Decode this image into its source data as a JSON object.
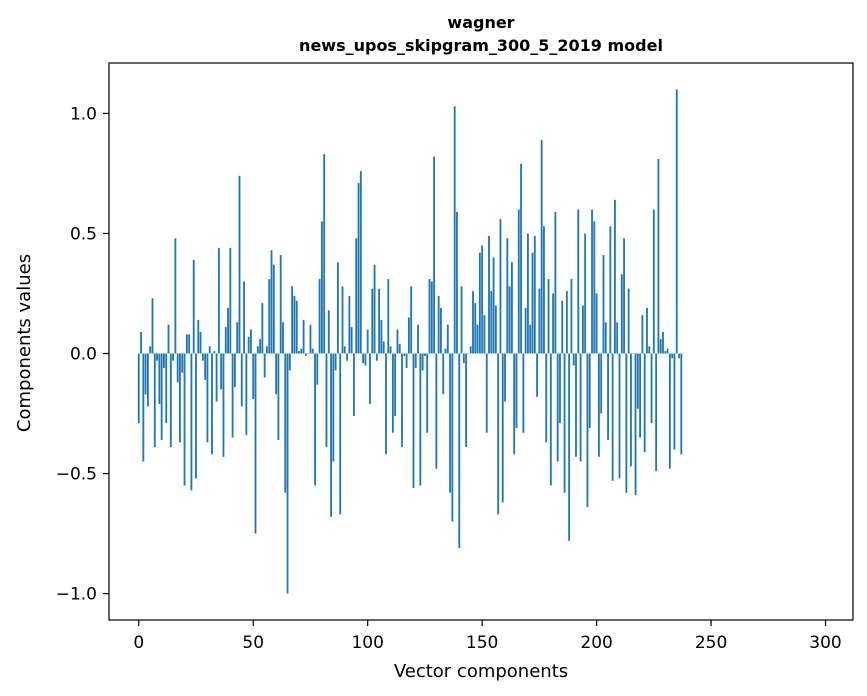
{
  "chart_data": {
    "type": "bar",
    "title": "wagner",
    "subtitle": "news_upos_skipgram_300_5_2019 model",
    "xlabel": "Vector components",
    "ylabel": "Components values",
    "xlim": [
      -13,
      312
    ],
    "ylim": [
      -1.11,
      1.21
    ],
    "xticks": [
      0,
      50,
      100,
      150,
      200,
      250,
      300
    ],
    "xtick_labels": [
      "0",
      "50",
      "100",
      "150",
      "200",
      "250",
      "300"
    ],
    "yticks": [
      -1.0,
      -0.5,
      0.0,
      0.5,
      1.0
    ],
    "ytick_labels": [
      "−1.0",
      "−0.5",
      "0.0",
      "0.5",
      "1.0"
    ],
    "grid": false,
    "bar_color": "#1f77b4",
    "values": [
      -0.29,
      0.09,
      -0.45,
      -0.17,
      -0.22,
      0.03,
      0.23,
      -0.39,
      -0.03,
      -0.21,
      -0.36,
      -0.06,
      -0.29,
      0.12,
      -0.39,
      -0.03,
      0.48,
      -0.12,
      -0.37,
      -0.08,
      -0.55,
      0.08,
      0.08,
      -0.57,
      0.39,
      -0.52,
      0.14,
      0.09,
      -0.03,
      -0.11,
      -0.37,
      0.03,
      -0.42,
      0.01,
      -0.2,
      0.44,
      -0.15,
      -0.43,
      0.11,
      0.19,
      0.44,
      -0.35,
      -0.14,
      0.13,
      0.74,
      -0.22,
      0.3,
      -0.34,
      0.07,
      0.1,
      -0.19,
      -0.75,
      0.03,
      0.06,
      0.21,
      -0.1,
      0.03,
      0.31,
      0.43,
      0.37,
      -0.17,
      -0.36,
      0.41,
      0.13,
      -0.58,
      -1.0,
      -0.07,
      0.28,
      0.24,
      0.22,
      0.01,
      0.02,
      0.14,
      -0.01,
      0.0,
      0.12,
      0.02,
      -0.55,
      -0.13,
      0.31,
      0.55,
      0.83,
      -0.39,
      0.18,
      -0.68,
      -0.45,
      -0.07,
      0.38,
      -0.67,
      0.28,
      0.03,
      -0.03,
      0.24,
      0.11,
      -0.26,
      0.48,
      0.71,
      0.76,
      -0.04,
      -0.05,
      0.1,
      -0.21,
      0.27,
      0.37,
      -0.03,
      0.27,
      0.14,
      0.05,
      -0.42,
      0.31,
      0.03,
      -0.33,
      -0.26,
      0.1,
      0.04,
      -0.39,
      -0.01,
      -0.06,
      0.15,
      0.28,
      -0.56,
      -0.06,
      0.12,
      -0.55,
      -0.07,
      -0.01,
      -0.33,
      0.31,
      0.3,
      0.82,
      -0.48,
      0.24,
      0.19,
      -0.17,
      0.02,
      0.12,
      -0.58,
      -0.7,
      1.03,
      0.59,
      -0.81,
      0.28,
      -0.04,
      -0.39,
      0.0,
      0.03,
      0.26,
      0.21,
      0.12,
      0.42,
      0.45,
      0.16,
      -0.33,
      0.49,
      0.26,
      0.4,
      0.2,
      -0.67,
      0.56,
      -0.62,
      -0.2,
      0.48,
      0.28,
      0.38,
      -0.42,
      -0.31,
      0.6,
      0.79,
      -0.33,
      0.19,
      0.5,
      0.12,
      0.42,
      0.49,
      -0.18,
      0.27,
      0.89,
      0.53,
      -0.37,
      0.31,
      -0.55,
      0.25,
      0.59,
      -0.45,
      -0.29,
      0.22,
      -0.58,
      0.26,
      -0.78,
      0.31,
      -0.05,
      -0.43,
      0.6,
      -0.45,
      0.2,
      0.5,
      -0.64,
      -0.31,
      0.6,
      0.55,
      0.25,
      -0.43,
      -0.25,
      0.41,
      0.13,
      -0.36,
      0.53,
      -0.53,
      0.64,
      0.13,
      -0.52,
      0.33,
      0.48,
      -0.58,
      0.27,
      -0.47,
      0.0,
      -0.59,
      -0.23,
      -0.35,
      0.16,
      -0.41,
      0.19,
      0.03,
      -0.29,
      0.6,
      -0.49,
      0.81,
      0.06,
      0.09,
      0.01,
      0.02,
      -0.48,
      -0.02,
      -0.4,
      1.1,
      -0.02,
      -0.42
    ]
  }
}
